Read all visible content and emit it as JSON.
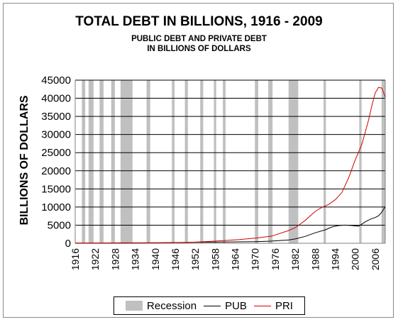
{
  "chart_data": {
    "type": "line",
    "title": "TOTAL DEBT IN BILLIONS, 1916 - 2009",
    "subtitle": [
      "PUBLIC DEBT AND PRIVATE DEBT",
      "IN BILLIONS OF DOLLARS"
    ],
    "ylabel": "BILLIONS OF DOLLARS",
    "xlabel": "",
    "xlim": [
      1916,
      2009
    ],
    "ylim": [
      0,
      45000
    ],
    "y_ticks": [
      0,
      5000,
      10000,
      15000,
      20000,
      25000,
      30000,
      35000,
      40000,
      45000
    ],
    "x_ticks": [
      1916,
      1922,
      1928,
      1934,
      1940,
      1946,
      1952,
      1958,
      1964,
      1970,
      1976,
      1982,
      1988,
      1994,
      2000,
      2006
    ],
    "grid": true,
    "legend_position": "bottom",
    "recessions": [
      [
        1918,
        1919
      ],
      [
        1920,
        1921.5
      ],
      [
        1923.3,
        1924.5
      ],
      [
        1926.8,
        1927.9
      ],
      [
        1929.6,
        1933.2
      ],
      [
        1937.4,
        1938.5
      ],
      [
        1945,
        1945.8
      ],
      [
        1948.9,
        1949.8
      ],
      [
        1953.5,
        1954.4
      ],
      [
        1957.6,
        1958.3
      ],
      [
        1960.3,
        1961.1
      ],
      [
        1969.9,
        1970.9
      ],
      [
        1973.9,
        1975.2
      ],
      [
        1980,
        1982.9
      ],
      [
        1990.5,
        1991.2
      ],
      [
        2001.2,
        2001.9
      ],
      [
        2007.9,
        2009.5
      ]
    ],
    "series": [
      {
        "name": "PUB",
        "color": "#000000",
        "x": [
          1916,
          1920,
          1925,
          1930,
          1935,
          1940,
          1945,
          1950,
          1955,
          1960,
          1965,
          1970,
          1975,
          1980,
          1982,
          1985,
          1988,
          1991,
          1993,
          1995,
          1997,
          1999,
          2000,
          2001,
          2002,
          2003,
          2004,
          2005,
          2006,
          2007,
          2008,
          2009
        ],
        "values": [
          30,
          40,
          50,
          60,
          80,
          100,
          200,
          250,
          300,
          350,
          400,
          450,
          600,
          900,
          1200,
          1900,
          2900,
          3700,
          4500,
          4900,
          5000,
          4900,
          4800,
          4700,
          5300,
          5900,
          6400,
          6800,
          7100,
          7600,
          8600,
          10100
        ]
      },
      {
        "name": "PRI",
        "color": "#d20000",
        "x": [
          1916,
          1920,
          1925,
          1930,
          1935,
          1940,
          1945,
          1950,
          1955,
          1960,
          1965,
          1970,
          1975,
          1980,
          1982,
          1985,
          1988,
          1990,
          1992,
          1994,
          1996,
          1998,
          2000,
          2002,
          2004,
          2005,
          2006,
          2007,
          2008,
          2009
        ],
        "values": [
          60,
          80,
          100,
          120,
          120,
          130,
          150,
          250,
          450,
          700,
          1000,
          1400,
          2000,
          3500,
          4300,
          6300,
          8800,
          9900,
          10700,
          12000,
          14000,
          18000,
          23000,
          27300,
          34000,
          38000,
          41500,
          43000,
          42800,
          40300
        ]
      }
    ]
  },
  "legend": {
    "recession_label": "Recession",
    "pub_label": "PUB",
    "pri_label": "PRI"
  },
  "colors": {
    "recession": "#c0c0c0",
    "grid": "#000000"
  }
}
